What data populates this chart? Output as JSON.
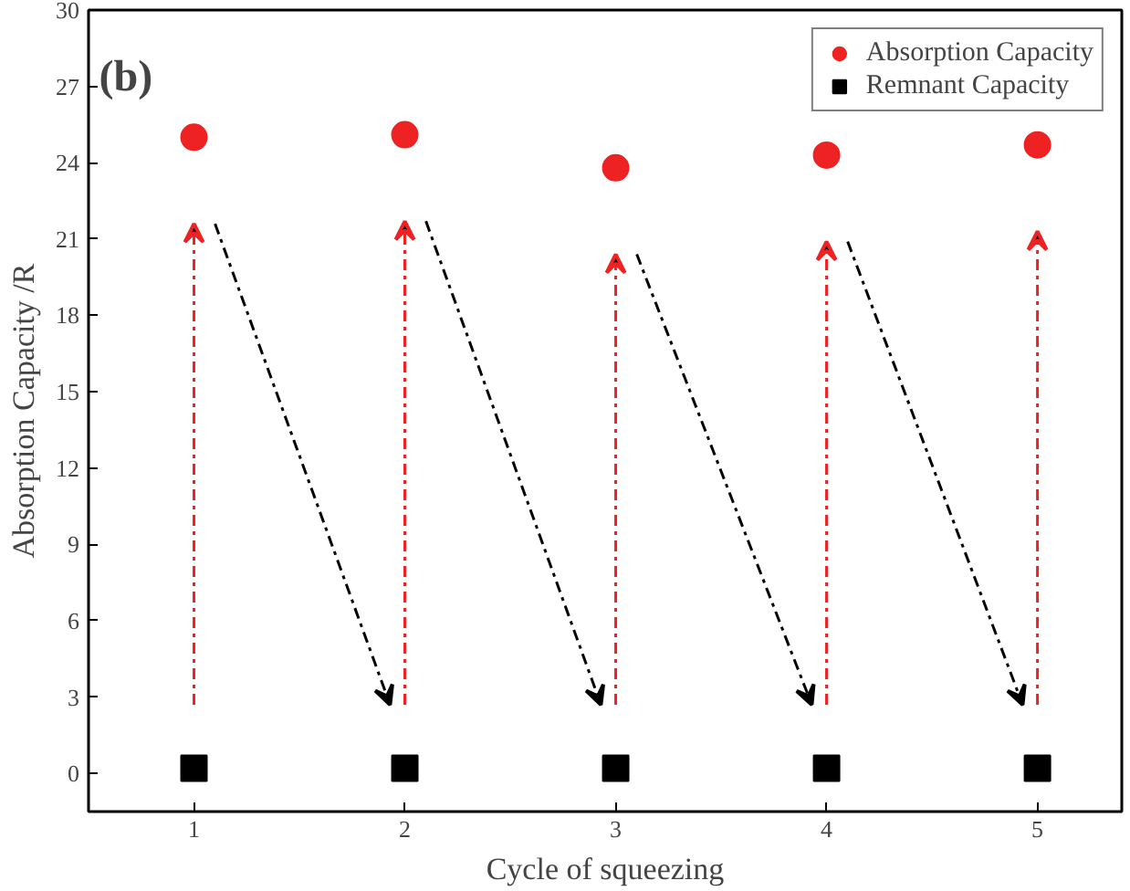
{
  "chart_data": {
    "type": "scatter",
    "xlabel": "Cycle of squeezing",
    "ylabel": "Absorption Capacity /R",
    "x": [
      1,
      2,
      3,
      4,
      5
    ],
    "series": [
      {
        "name": "Absorption Capacity",
        "color": "#ee2222",
        "marker": "circle",
        "values": [
          25.0,
          25.1,
          23.8,
          24.3,
          24.7
        ]
      },
      {
        "name": "Remnant Capacity",
        "color": "#000000",
        "marker": "square",
        "values": [
          0.2,
          0.2,
          0.2,
          0.2,
          0.2
        ]
      }
    ],
    "xlim": [
      0.5,
      5.4
    ],
    "xticks": [
      1,
      2,
      3,
      4,
      5
    ],
    "ylim": [
      -1.5,
      30
    ],
    "yticks": [
      0,
      3,
      6,
      9,
      12,
      15,
      18,
      21,
      24,
      27,
      30
    ],
    "annotations": [
      "(b)"
    ],
    "grid": false,
    "legend": "top right"
  }
}
